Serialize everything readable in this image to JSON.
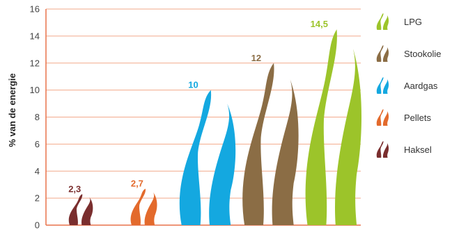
{
  "chart_data": {
    "type": "bar",
    "ylabel": "% van de energie",
    "ylim": [
      0,
      16
    ],
    "yticks": [
      "0",
      "2",
      "4",
      "6",
      "8",
      "10",
      "12",
      "14",
      "16"
    ],
    "grid": true,
    "legend_position": "right",
    "marker": "flame",
    "series": [
      {
        "name": "Haksel",
        "value": 2.3,
        "label": "2,3",
        "color": "#7a2e2e"
      },
      {
        "name": "Pellets",
        "value": 2.7,
        "label": "2,7",
        "color": "#e36a2c"
      },
      {
        "name": "Aardgas",
        "value": 10,
        "label": "10",
        "color": "#14a8e0"
      },
      {
        "name": "Stookolie",
        "value": 12,
        "label": "12",
        "color": "#8b6d45"
      },
      {
        "name": "LPG",
        "value": 14.5,
        "label": "14,5",
        "color": "#9cc42a"
      }
    ],
    "legend_order": [
      "LPG",
      "Stookolie",
      "Aardgas",
      "Pellets",
      "Haksel"
    ],
    "axis_color": "#e9724a",
    "grid_color": "#f2a98a"
  }
}
